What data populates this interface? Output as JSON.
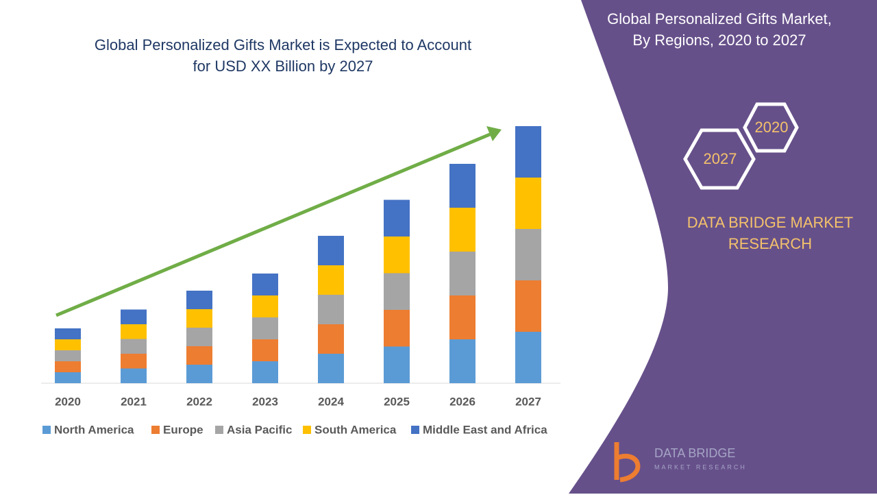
{
  "header": {
    "title_lines": [
      "Global Personalized Gifts Market is Expected to Account",
      "for USD XX Billion by 2027"
    ]
  },
  "side_panel": {
    "title_lines": [
      "Global Personalized Gifts Market,",
      "By Regions, 2020 to 2027"
    ],
    "hexagons": [
      "2020",
      "2027"
    ],
    "brand_lines": [
      "DATA BRIDGE MARKET",
      "RESEARCH"
    ],
    "logo_lines": [
      "DATA BRIDGE",
      "MARKET RESEARCH"
    ]
  },
  "chart_data": {
    "type": "stacked_bar",
    "categories": [
      "2020",
      "2021",
      "2022",
      "2023",
      "2024",
      "2025",
      "2026",
      "2027"
    ],
    "series": [
      {
        "name": "North America",
        "color": "#5b9bd5",
        "values": [
          16,
          21.5,
          27,
          32,
          43,
          53.5,
          64,
          75
        ]
      },
      {
        "name": "Europe",
        "color": "#ed7d31",
        "values": [
          16,
          21.5,
          27,
          32,
          43,
          53.5,
          64,
          75
        ]
      },
      {
        "name": "Asia Pacific",
        "color": "#a5a5a5",
        "values": [
          16,
          21.5,
          27,
          32,
          43,
          53.5,
          64,
          75
        ]
      },
      {
        "name": "South America",
        "color": "#ffc000",
        "values": [
          16,
          21.5,
          27,
          32,
          43,
          53.5,
          64,
          75
        ]
      },
      {
        "name": "Middle East and Africa",
        "color": "#4472c4",
        "values": [
          16,
          21.5,
          27,
          32,
          43,
          53.5,
          64,
          75
        ]
      }
    ],
    "ylim": [
      0,
      375
    ]
  }
}
